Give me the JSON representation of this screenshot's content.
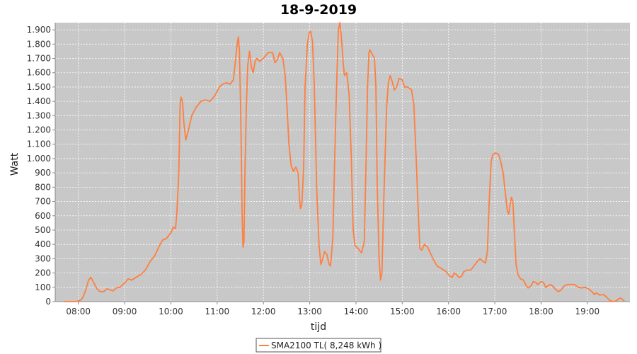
{
  "chart_data": {
    "type": "line",
    "title": "18-9-2019",
    "xlabel": "tijd",
    "ylabel": "Watt",
    "x_unit": "hours",
    "xlim": [
      7.5,
      19.92
    ],
    "ylim": [
      0,
      1950
    ],
    "x_ticks": [
      8,
      9,
      10,
      11,
      12,
      13,
      14,
      15,
      16,
      17,
      18,
      19
    ],
    "x_tick_labels": [
      "08:00",
      "09:00",
      "10:00",
      "11:00",
      "12:00",
      "13:00",
      "14:00",
      "15:00",
      "16:00",
      "17:00",
      "18:00",
      "19:00"
    ],
    "y_ticks": [
      0,
      100,
      200,
      300,
      400,
      500,
      600,
      700,
      800,
      900,
      1000,
      1100,
      1200,
      1300,
      1400,
      1500,
      1600,
      1700,
      1800,
      1900
    ],
    "y_tick_labels": [
      "0",
      "100",
      "200",
      "300",
      "400",
      "500",
      "600",
      "700",
      "800",
      "900",
      "1.000",
      "1.100",
      "1.200",
      "1.300",
      "1.400",
      "1.500",
      "1.600",
      "1.700",
      "1.800",
      "1.900"
    ],
    "grid": true,
    "legend_position": "bottom",
    "series": [
      {
        "name": "SMA2100 TL( 8,248 kWh )",
        "color": "#ff7f3f",
        "points": [
          [
            7.7,
            0
          ],
          [
            7.95,
            0
          ],
          [
            8.05,
            10
          ],
          [
            8.1,
            30
          ],
          [
            8.17,
            90
          ],
          [
            8.22,
            150
          ],
          [
            8.27,
            170
          ],
          [
            8.32,
            140
          ],
          [
            8.4,
            90
          ],
          [
            8.47,
            70
          ],
          [
            8.55,
            70
          ],
          [
            8.62,
            90
          ],
          [
            8.7,
            80
          ],
          [
            8.75,
            75
          ],
          [
            8.82,
            95
          ],
          [
            8.9,
            100
          ],
          [
            9.0,
            130
          ],
          [
            9.08,
            160
          ],
          [
            9.15,
            150
          ],
          [
            9.25,
            170
          ],
          [
            9.35,
            190
          ],
          [
            9.45,
            220
          ],
          [
            9.55,
            280
          ],
          [
            9.65,
            320
          ],
          [
            9.75,
            390
          ],
          [
            9.82,
            430
          ],
          [
            9.9,
            440
          ],
          [
            10.0,
            480
          ],
          [
            10.05,
            520
          ],
          [
            10.1,
            510
          ],
          [
            10.13,
            620
          ],
          [
            10.17,
            900
          ],
          [
            10.2,
            1380
          ],
          [
            10.22,
            1430
          ],
          [
            10.25,
            1400
          ],
          [
            10.28,
            1250
          ],
          [
            10.32,
            1130
          ],
          [
            10.38,
            1200
          ],
          [
            10.45,
            1300
          ],
          [
            10.55,
            1360
          ],
          [
            10.65,
            1400
          ],
          [
            10.75,
            1410
          ],
          [
            10.85,
            1400
          ],
          [
            10.95,
            1440
          ],
          [
            11.05,
            1500
          ],
          [
            11.12,
            1520
          ],
          [
            11.2,
            1530
          ],
          [
            11.28,
            1520
          ],
          [
            11.35,
            1550
          ],
          [
            11.4,
            1700
          ],
          [
            11.44,
            1820
          ],
          [
            11.46,
            1850
          ],
          [
            11.48,
            1760
          ],
          [
            11.51,
            1300
          ],
          [
            11.54,
            600
          ],
          [
            11.56,
            380
          ],
          [
            11.58,
            420
          ],
          [
            11.6,
            900
          ],
          [
            11.63,
            1350
          ],
          [
            11.66,
            1650
          ],
          [
            11.7,
            1750
          ],
          [
            11.74,
            1640
          ],
          [
            11.78,
            1600
          ],
          [
            11.82,
            1680
          ],
          [
            11.86,
            1700
          ],
          [
            11.92,
            1680
          ],
          [
            12.0,
            1700
          ],
          [
            12.1,
            1740
          ],
          [
            12.2,
            1740
          ],
          [
            12.25,
            1670
          ],
          [
            12.3,
            1690
          ],
          [
            12.35,
            1740
          ],
          [
            12.42,
            1700
          ],
          [
            12.47,
            1580
          ],
          [
            12.52,
            1300
          ],
          [
            12.55,
            1100
          ],
          [
            12.6,
            950
          ],
          [
            12.65,
            910
          ],
          [
            12.7,
            940
          ],
          [
            12.75,
            900
          ],
          [
            12.78,
            720
          ],
          [
            12.8,
            650
          ],
          [
            12.83,
            680
          ],
          [
            12.87,
            950
          ],
          [
            12.9,
            1500
          ],
          [
            12.95,
            1800
          ],
          [
            12.99,
            1880
          ],
          [
            13.02,
            1890
          ],
          [
            13.06,
            1820
          ],
          [
            13.1,
            1500
          ],
          [
            13.15,
            800
          ],
          [
            13.2,
            400
          ],
          [
            13.24,
            260
          ],
          [
            13.28,
            300
          ],
          [
            13.32,
            350
          ],
          [
            13.37,
            330
          ],
          [
            13.42,
            260
          ],
          [
            13.45,
            250
          ],
          [
            13.5,
            450
          ],
          [
            13.54,
            1000
          ],
          [
            13.58,
            1500
          ],
          [
            13.62,
            1900
          ],
          [
            13.65,
            1950
          ],
          [
            13.68,
            1870
          ],
          [
            13.72,
            1680
          ],
          [
            13.75,
            1580
          ],
          [
            13.8,
            1600
          ],
          [
            13.85,
            1450
          ],
          [
            13.9,
            1000
          ],
          [
            13.94,
            500
          ],
          [
            13.98,
            390
          ],
          [
            14.05,
            370
          ],
          [
            14.12,
            340
          ],
          [
            14.18,
            420
          ],
          [
            14.22,
            1000
          ],
          [
            14.25,
            1500
          ],
          [
            14.28,
            1740
          ],
          [
            14.3,
            1760
          ],
          [
            14.35,
            1730
          ],
          [
            14.4,
            1700
          ],
          [
            14.43,
            1500
          ],
          [
            14.46,
            800
          ],
          [
            14.5,
            300
          ],
          [
            14.53,
            150
          ],
          [
            14.56,
            200
          ],
          [
            14.6,
            700
          ],
          [
            14.66,
            1350
          ],
          [
            14.7,
            1530
          ],
          [
            14.74,
            1580
          ],
          [
            14.78,
            1540
          ],
          [
            14.83,
            1480
          ],
          [
            14.88,
            1500
          ],
          [
            14.93,
            1560
          ],
          [
            15.0,
            1550
          ],
          [
            15.05,
            1500
          ],
          [
            15.12,
            1500
          ],
          [
            15.2,
            1480
          ],
          [
            15.25,
            1380
          ],
          [
            15.3,
            1000
          ],
          [
            15.35,
            600
          ],
          [
            15.38,
            370
          ],
          [
            15.42,
            360
          ],
          [
            15.48,
            400
          ],
          [
            15.55,
            380
          ],
          [
            15.62,
            330
          ],
          [
            15.68,
            290
          ],
          [
            15.75,
            250
          ],
          [
            15.85,
            230
          ],
          [
            15.95,
            210
          ],
          [
            16.02,
            180
          ],
          [
            16.08,
            170
          ],
          [
            16.12,
            200
          ],
          [
            16.17,
            190
          ],
          [
            16.22,
            170
          ],
          [
            16.28,
            175
          ],
          [
            16.33,
            210
          ],
          [
            16.4,
            220
          ],
          [
            16.48,
            220
          ],
          [
            16.55,
            250
          ],
          [
            16.62,
            280
          ],
          [
            16.68,
            300
          ],
          [
            16.75,
            280
          ],
          [
            16.8,
            270
          ],
          [
            16.84,
            350
          ],
          [
            16.88,
            700
          ],
          [
            16.92,
            980
          ],
          [
            16.96,
            1030
          ],
          [
            17.02,
            1040
          ],
          [
            17.08,
            1030
          ],
          [
            17.12,
            990
          ],
          [
            17.18,
            900
          ],
          [
            17.22,
            780
          ],
          [
            17.27,
            640
          ],
          [
            17.3,
            610
          ],
          [
            17.33,
            680
          ],
          [
            17.36,
            730
          ],
          [
            17.39,
            700
          ],
          [
            17.42,
            500
          ],
          [
            17.46,
            260
          ],
          [
            17.5,
            190
          ],
          [
            17.55,
            160
          ],
          [
            17.62,
            150
          ],
          [
            17.68,
            110
          ],
          [
            17.72,
            95
          ],
          [
            17.78,
            110
          ],
          [
            17.83,
            140
          ],
          [
            17.88,
            135
          ],
          [
            17.93,
            120
          ],
          [
            18.0,
            140
          ],
          [
            18.05,
            135
          ],
          [
            18.1,
            100
          ],
          [
            18.15,
            110
          ],
          [
            18.2,
            120
          ],
          [
            18.25,
            110
          ],
          [
            18.3,
            90
          ],
          [
            18.37,
            70
          ],
          [
            18.43,
            80
          ],
          [
            18.5,
            110
          ],
          [
            18.58,
            120
          ],
          [
            18.65,
            120
          ],
          [
            18.72,
            120
          ],
          [
            18.8,
            100
          ],
          [
            18.88,
            95
          ],
          [
            18.95,
            100
          ],
          [
            19.02,
            90
          ],
          [
            19.1,
            70
          ],
          [
            19.15,
            50
          ],
          [
            19.2,
            60
          ],
          [
            19.27,
            45
          ],
          [
            19.35,
            50
          ],
          [
            19.42,
            30
          ],
          [
            19.48,
            10
          ],
          [
            19.55,
            0
          ],
          [
            19.62,
            5
          ],
          [
            19.68,
            20
          ],
          [
            19.72,
            25
          ],
          [
            19.76,
            15
          ],
          [
            19.8,
            3
          ]
        ]
      }
    ]
  }
}
